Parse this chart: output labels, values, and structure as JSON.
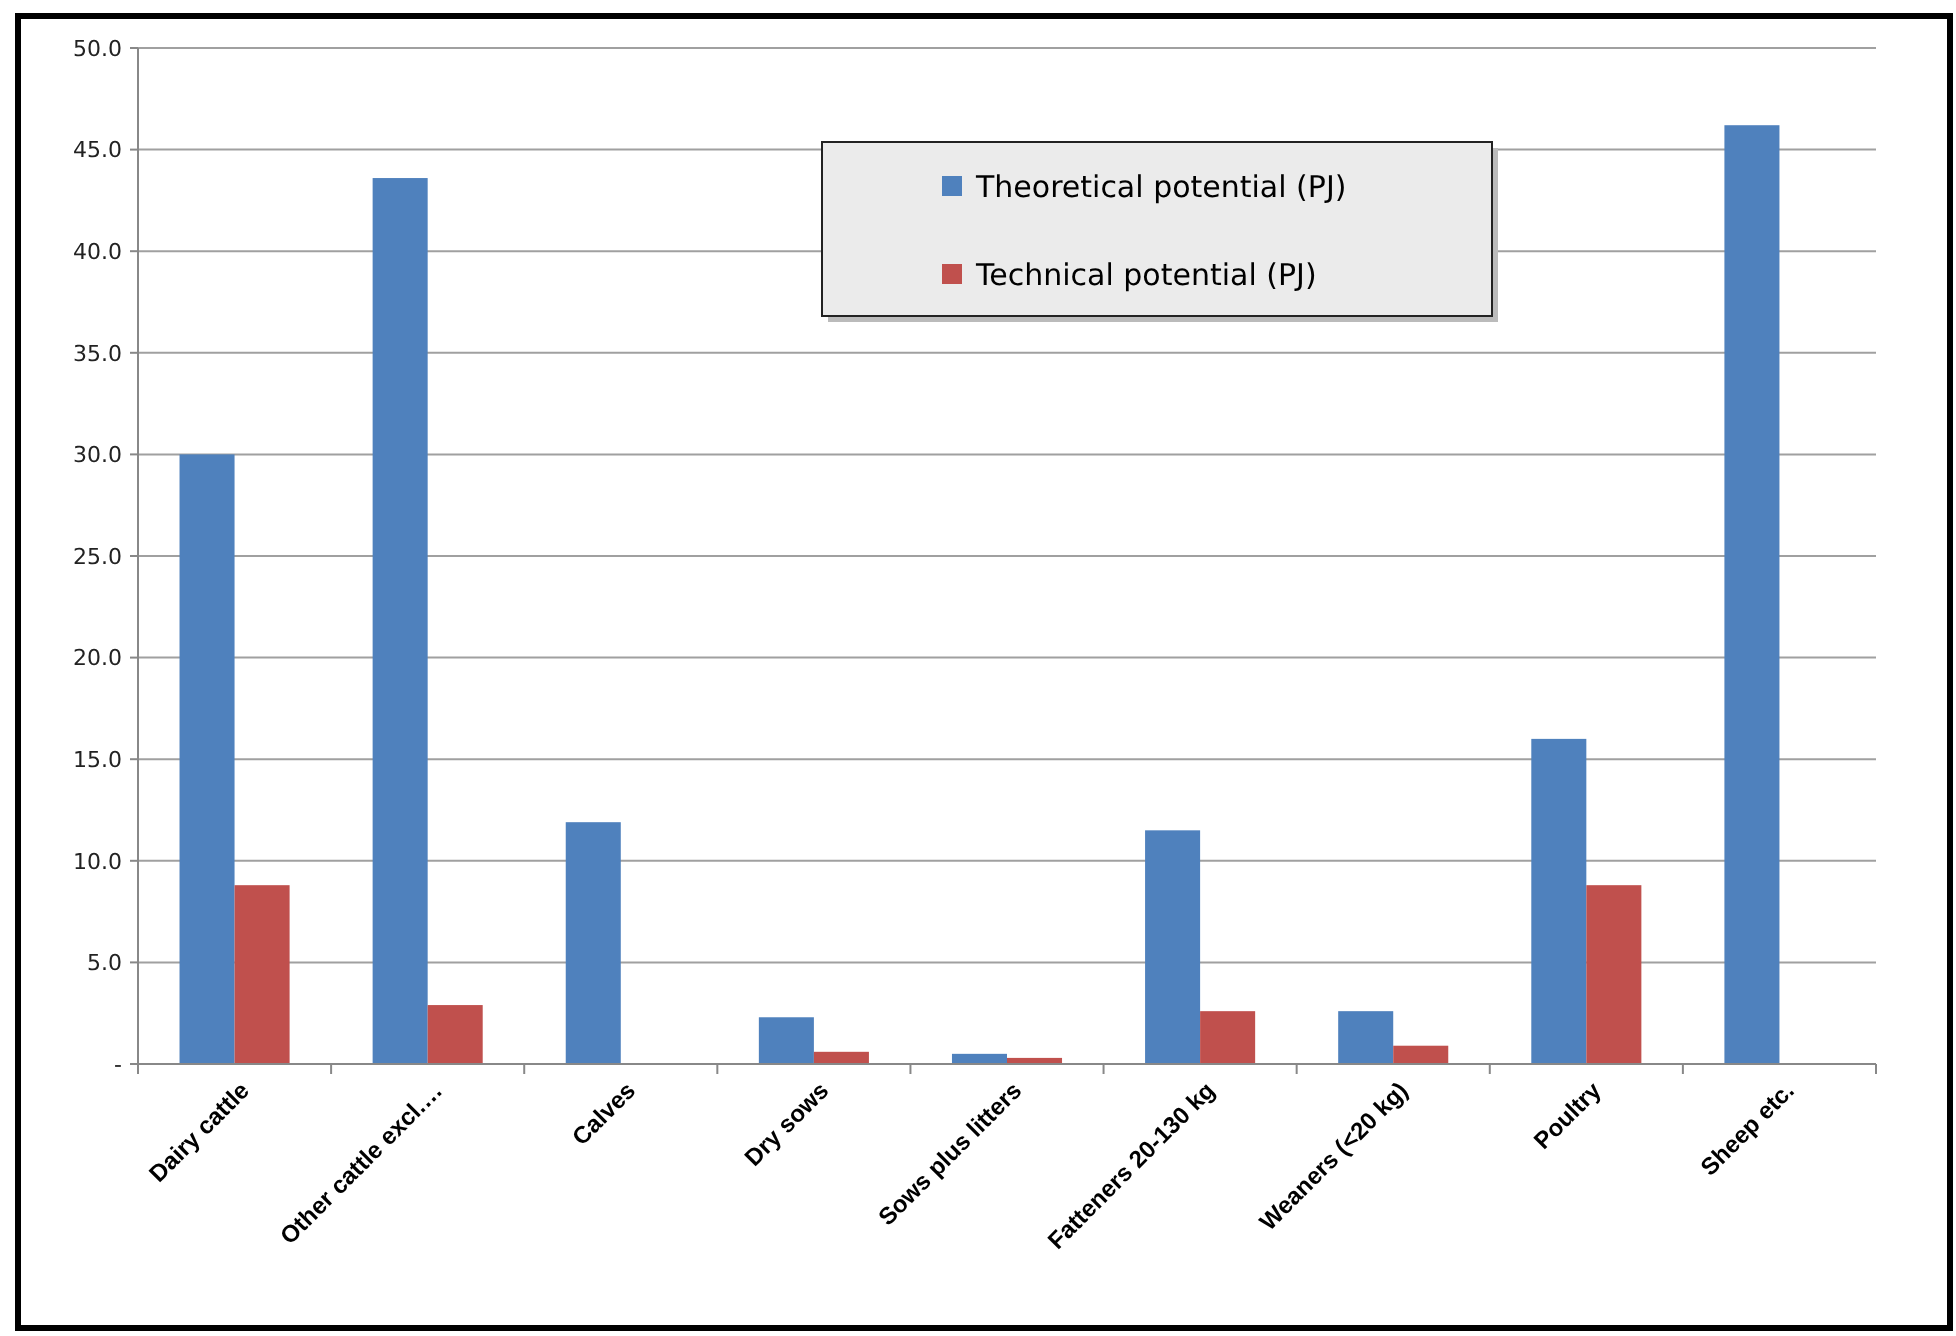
{
  "chart_data": {
    "type": "bar",
    "categories": [
      "Dairy cattle",
      "Other cattle excl.…",
      "Calves",
      "Dry sows",
      "Sows plus litters",
      "Fatteners 20-130 kg",
      "Weaners (<20 kg)",
      "Poultry",
      "Sheep etc."
    ],
    "series": [
      {
        "name": "Theoretical potential (PJ)",
        "color": "#4f81bd",
        "values": [
          30.0,
          43.6,
          11.9,
          2.3,
          0.5,
          11.5,
          2.6,
          16.0,
          46.2
        ]
      },
      {
        "name": "Technical potential (PJ)",
        "color": "#c0504d",
        "values": [
          8.8,
          2.9,
          null,
          0.6,
          0.3,
          2.6,
          0.9,
          8.8,
          null
        ]
      }
    ],
    "ylim": [
      0,
      50
    ],
    "yticks": [
      {
        "value": 0,
        "label": "-"
      },
      {
        "value": 5,
        "label": "5.0"
      },
      {
        "value": 10,
        "label": "10.0"
      },
      {
        "value": 15,
        "label": "15.0"
      },
      {
        "value": 20,
        "label": "20.0"
      },
      {
        "value": 25,
        "label": "25.0"
      },
      {
        "value": 30,
        "label": "30.0"
      },
      {
        "value": 35,
        "label": "35.0"
      },
      {
        "value": 40,
        "label": "40.0"
      },
      {
        "value": 45,
        "label": "45.0"
      },
      {
        "value": 50,
        "label": "50.0"
      }
    ],
    "grid": "y",
    "legend": "top"
  }
}
